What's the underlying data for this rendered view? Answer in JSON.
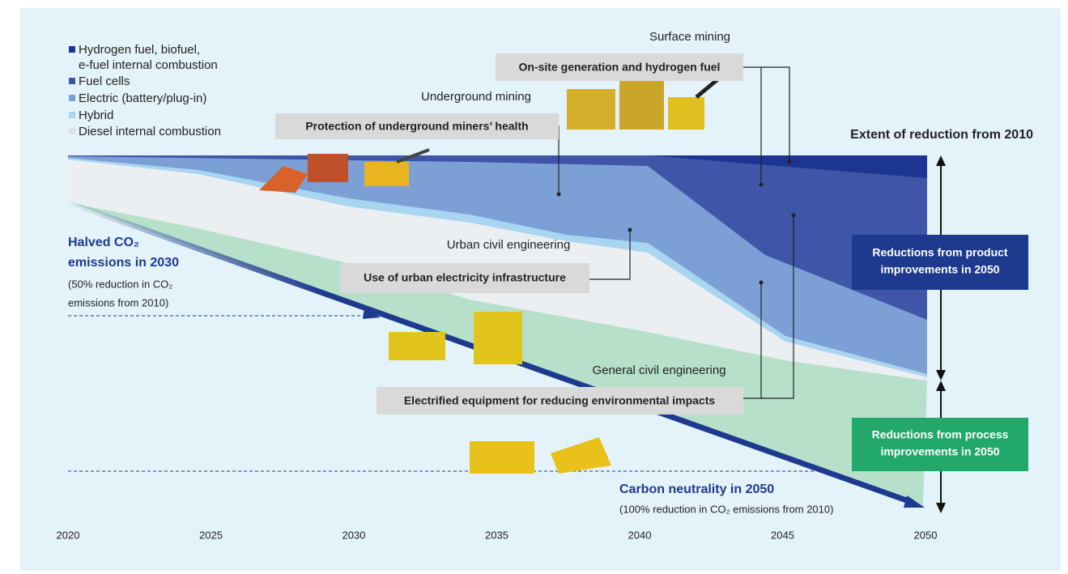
{
  "legend": [
    {
      "lines": [
        "Hydrogen fuel, biofuel,",
        "e-fuel internal combustion"
      ]
    },
    {
      "lines": [
        "Fuel cells"
      ]
    },
    {
      "lines": [
        "Electric (battery/plug-in)"
      ]
    },
    {
      "lines": [
        "Hybrid"
      ]
    },
    {
      "lines": [
        "Diesel internal combustion"
      ]
    }
  ],
  "segments": [
    {
      "title": "Surface mining",
      "solution": "On-site generation and hydrogen fuel"
    },
    {
      "title": "Underground mining",
      "solution": "Protection of underground miners’ health"
    },
    {
      "title": "Urban civil engineering",
      "solution": "Use of urban electricity infrastructure"
    },
    {
      "title": "General civil engineering",
      "solution": "Electrified equipment for reducing environmental impacts"
    }
  ],
  "extent_title": "Extent of reduction from 2010",
  "product_box": [
    "Reductions from product",
    "improvements in 2050"
  ],
  "process_box": [
    "Reductions from process",
    "improvements in 2050"
  ],
  "milestone_2030": {
    "title": [
      "Halved CO₂",
      "emissions in 2030"
    ],
    "note": [
      "(50% reduction in CO₂",
      "emissions from 2010)"
    ]
  },
  "milestone_2050": {
    "title": "Carbon neutrality in 2050",
    "note": "(100% reduction in CO₂ emissions from 2010)"
  },
  "years": [
    "2020",
    "2025",
    "2030",
    "2035",
    "2040",
    "2045",
    "2050"
  ]
}
